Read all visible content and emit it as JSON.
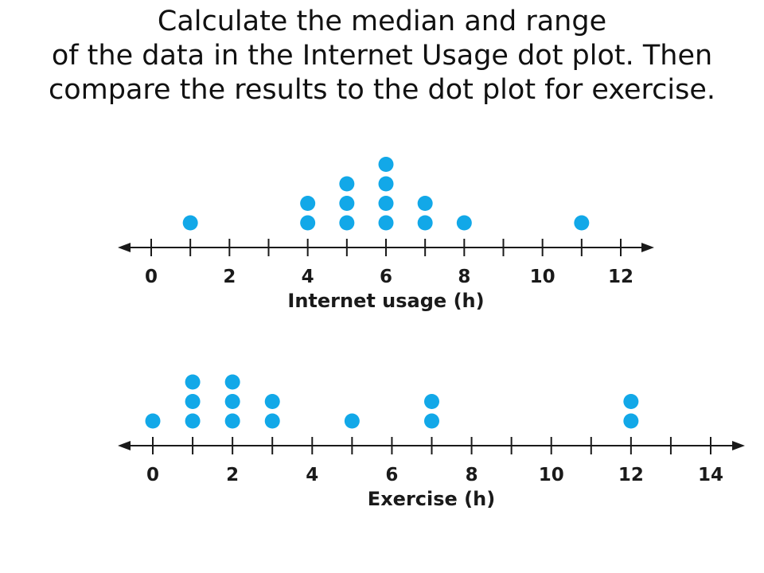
{
  "heading": {
    "lines": [
      "Calculate the median and range",
      "of the data in the Internet Usage dot plot.  Then",
      "compare the results to the dot plot for exercise."
    ]
  },
  "colors": {
    "dot": "#12a8e8",
    "axis": "#1a1a1a",
    "text": "#1a1a1a"
  },
  "chart_data": [
    {
      "type": "scatter",
      "subtype": "dot-plot",
      "title": "",
      "xlabel": "Internet usage (h)",
      "ylabel": "",
      "xlim": [
        0,
        12
      ],
      "tick_step": 1,
      "tick_labels": [
        "0",
        "2",
        "4",
        "6",
        "8",
        "10",
        "12"
      ],
      "points": [
        {
          "x": 1,
          "count": 1
        },
        {
          "x": 4,
          "count": 2
        },
        {
          "x": 5,
          "count": 3
        },
        {
          "x": 6,
          "count": 4
        },
        {
          "x": 7,
          "count": 2
        },
        {
          "x": 8,
          "count": 1
        },
        {
          "x": 11,
          "count": 1
        }
      ],
      "grid": false,
      "legend": "none"
    },
    {
      "type": "scatter",
      "subtype": "dot-plot",
      "title": "",
      "xlabel": "Exercise (h)",
      "ylabel": "",
      "xlim": [
        0,
        14
      ],
      "tick_step": 1,
      "tick_labels": [
        "0",
        "2",
        "4",
        "6",
        "8",
        "10",
        "12",
        "14"
      ],
      "points": [
        {
          "x": 0,
          "count": 1
        },
        {
          "x": 1,
          "count": 3
        },
        {
          "x": 2,
          "count": 3
        },
        {
          "x": 3,
          "count": 2
        },
        {
          "x": 5,
          "count": 1
        },
        {
          "x": 7,
          "count": 2
        },
        {
          "x": 12,
          "count": 2
        }
      ],
      "grid": false,
      "legend": "none"
    }
  ]
}
